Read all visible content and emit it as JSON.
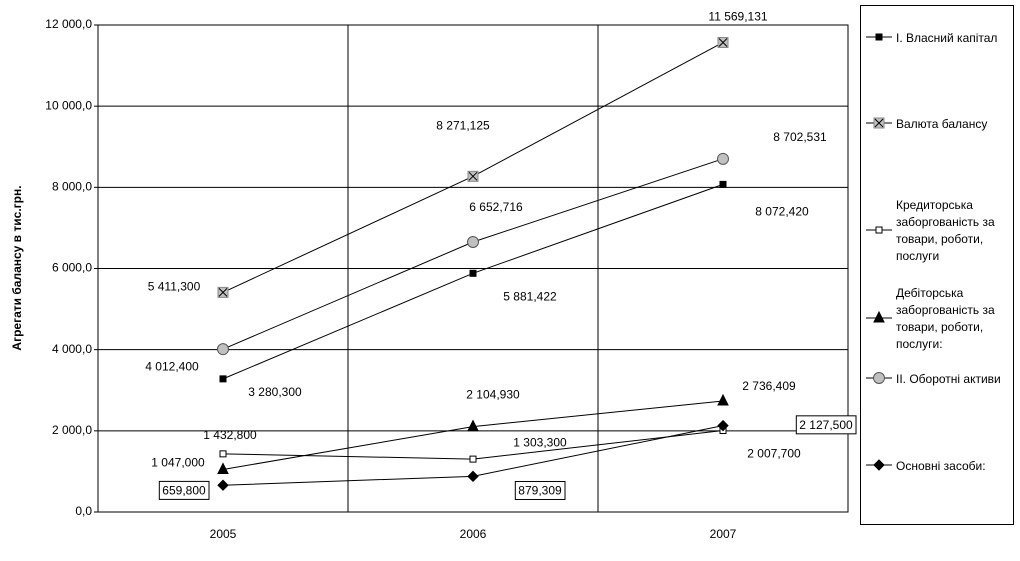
{
  "chart_data": {
    "type": "line",
    "y_label": "Агрегати балансу в тис.грн.",
    "categories": [
      "2005",
      "2006",
      "2007"
    ],
    "ylim": [
      0,
      12000
    ],
    "yticks": [
      {
        "value": 0,
        "label": "0,0"
      },
      {
        "value": 2000,
        "label": "2 000,0"
      },
      {
        "value": 4000,
        "label": "4 000,0"
      },
      {
        "value": 6000,
        "label": "6 000,0"
      },
      {
        "value": 8000,
        "label": "8 000,0"
      },
      {
        "value": 10000,
        "label": "10 000,0"
      },
      {
        "value": 12000,
        "label": "12 000,0"
      }
    ],
    "grid": true,
    "legend": "right",
    "series": [
      {
        "name": "І. Власний капітал",
        "color": "#000000",
        "marker": "square",
        "values": [
          3280.3,
          5881.422,
          8072.42
        ],
        "value_labels": [
          "3 280,300",
          "5 881,422",
          "8 072,420"
        ]
      },
      {
        "name": "Валюта балансу",
        "color": "#c0c0c0",
        "marker": "xsquare",
        "values": [
          5411.3,
          8271.125,
          11569.131
        ],
        "value_labels": [
          "5 411,300",
          "8 271,125",
          "11 569,131"
        ]
      },
      {
        "name": "Кредиторська заборгованість за товари, роботи, послуги",
        "color": "#ffffff",
        "marker": "square",
        "values": [
          1432.8,
          1303.3,
          2007.7
        ],
        "value_labels": [
          "1 432,800",
          "1 303,300",
          "2 007,700"
        ]
      },
      {
        "name": "Дебіторська заборгованість за товари, роботи, послуги:",
        "color": "#000000",
        "marker": "triangle",
        "values": [
          1047.0,
          2104.93,
          2736.409
        ],
        "value_labels": [
          "1 047,000",
          "2 104,930",
          "2 736,409"
        ]
      },
      {
        "name": "ІІ. Оборотні активи",
        "color": "#c0c0c0",
        "marker": "circle",
        "values": [
          4012.4,
          6652.716,
          8702.531
        ],
        "value_labels": [
          "4 012,400",
          "6 652,716",
          "8 702,531"
        ]
      },
      {
        "name": "Основні засоби:",
        "color": "#000000",
        "marker": "diamond",
        "values": [
          659.8,
          879.309,
          2127.5
        ],
        "value_labels": [
          "659,800",
          "879,309",
          "2 127,500"
        ],
        "boxed_labels": true
      }
    ]
  }
}
